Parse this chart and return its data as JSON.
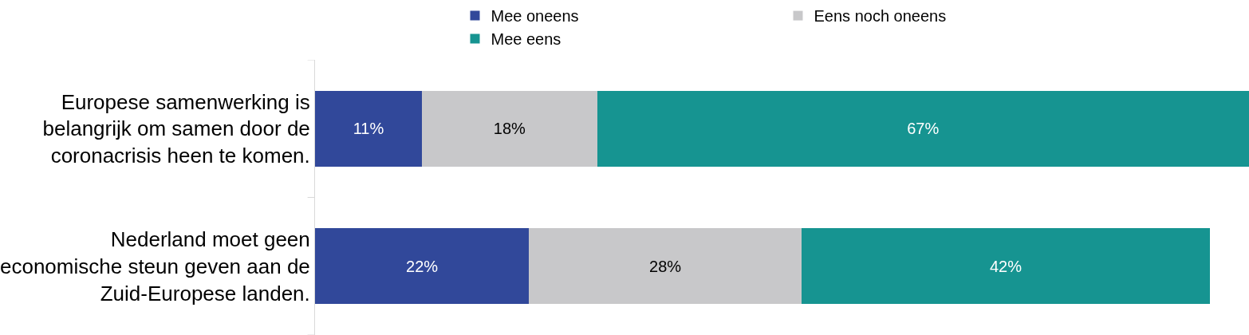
{
  "chart_data": {
    "type": "bar",
    "orientation": "horizontal",
    "stacked": true,
    "legend": "top",
    "categories": [
      "Europese samenwerking is belangrijk om samen door de coronacrisis heen te komen.",
      "Nederland moet geen economische steun geven aan de Zuid-Europese landen."
    ],
    "series": [
      {
        "name": "Mee oneens",
        "color": "#31489a",
        "values": [
          11,
          22
        ],
        "value_labels": [
          "11%",
          "22%"
        ]
      },
      {
        "name": "Eens noch oneens",
        "color": "#c8c8ca",
        "values": [
          18,
          28
        ],
        "value_labels": [
          "18%",
          "28%"
        ]
      },
      {
        "name": "Mee eens",
        "color": "#169491",
        "values": [
          67,
          42
        ],
        "value_labels": [
          "67%",
          "42%"
        ]
      }
    ]
  }
}
